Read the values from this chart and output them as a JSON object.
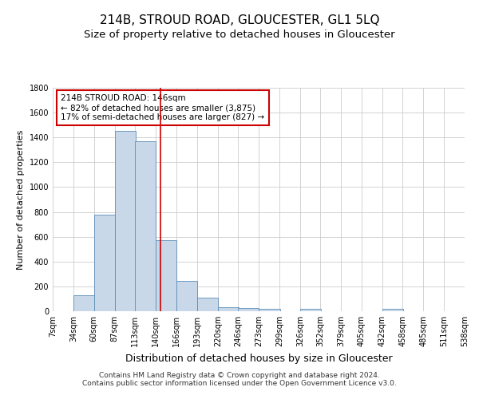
{
  "title": "214B, STROUD ROAD, GLOUCESTER, GL1 5LQ",
  "subtitle": "Size of property relative to detached houses in Gloucester",
  "xlabel": "Distribution of detached houses by size in Gloucester",
  "ylabel": "Number of detached properties",
  "footer_line1": "Contains HM Land Registry data © Crown copyright and database right 2024.",
  "footer_line2": "Contains public sector information licensed under the Open Government Licence v3.0.",
  "annotation_line1": "214B STROUD ROAD: 146sqm",
  "annotation_line2": "← 82% of detached houses are smaller (3,875)",
  "annotation_line3": "17% of semi-detached houses are larger (827) →",
  "property_size": 146,
  "bin_edges": [
    7,
    34,
    60,
    87,
    113,
    140,
    166,
    193,
    220,
    246,
    273,
    299,
    326,
    352,
    379,
    405,
    432,
    458,
    485,
    511,
    538
  ],
  "bar_heights": [
    0,
    130,
    780,
    1450,
    1370,
    570,
    245,
    110,
    35,
    25,
    20,
    0,
    20,
    0,
    0,
    0,
    20,
    0,
    0,
    0,
    0
  ],
  "bar_color": "#c8d8e8",
  "bar_edge_color": "#5b8db8",
  "vline_color": "#cc0000",
  "vline_x": 146,
  "ylim": [
    0,
    1800
  ],
  "yticks": [
    0,
    200,
    400,
    600,
    800,
    1000,
    1200,
    1400,
    1600,
    1800
  ],
  "background_color": "#ffffff",
  "grid_color": "#cccccc",
  "annotation_box_edge_color": "#cc0000",
  "title_fontsize": 11,
  "subtitle_fontsize": 9.5,
  "xlabel_fontsize": 9,
  "ylabel_fontsize": 8,
  "tick_fontsize": 7,
  "annotation_fontsize": 7.5,
  "footer_fontsize": 6.5
}
